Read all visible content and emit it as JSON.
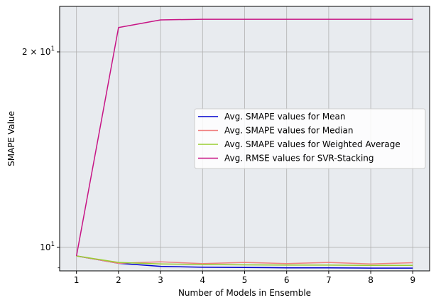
{
  "chart_data": {
    "type": "line",
    "xlabel": "Number of Models in Ensemble",
    "ylabel": "SMAPE Value",
    "y_scale": "log",
    "grid": true,
    "legend_position": "center-right",
    "background_color": "#e8ebef",
    "grid_color": "#b0b0b0",
    "x": [
      1,
      2,
      3,
      4,
      5,
      6,
      7,
      8,
      9
    ],
    "xlim": [
      0.6,
      9.4
    ],
    "ylim": [
      9.2,
      23.5
    ],
    "x_ticks": [
      {
        "value": 1,
        "label": "1"
      },
      {
        "value": 2,
        "label": "2"
      },
      {
        "value": 3,
        "label": "3"
      },
      {
        "value": 4,
        "label": "4"
      },
      {
        "value": 5,
        "label": "5"
      },
      {
        "value": 6,
        "label": "6"
      },
      {
        "value": 7,
        "label": "7"
      },
      {
        "value": 8,
        "label": "8"
      },
      {
        "value": 9,
        "label": "9"
      }
    ],
    "y_ticks": [
      {
        "value": 10,
        "base": "10",
        "exp": "1",
        "mult": ""
      },
      {
        "value": 20,
        "base": "10",
        "exp": "1",
        "mult": "2 × "
      }
    ],
    "y_minor_ticks": [
      9.3
    ],
    "series": [
      {
        "name": "Avg. SMAPE values for Mean",
        "color": "#0000cd",
        "values": [
          9.7,
          9.45,
          9.35,
          9.32,
          9.31,
          9.3,
          9.3,
          9.29,
          9.29
        ]
      },
      {
        "name": "Avg. SMAPE values for Median",
        "color": "#f08080",
        "values": [
          9.7,
          9.45,
          9.5,
          9.44,
          9.48,
          9.44,
          9.48,
          9.43,
          9.47
        ]
      },
      {
        "name": "Avg. SMAPE values for Weighted Average",
        "color": "#9acd32",
        "values": [
          9.7,
          9.48,
          9.43,
          9.41,
          9.4,
          9.39,
          9.39,
          9.38,
          9.38
        ]
      },
      {
        "name": "Avg. RMSE values for SVR-Stacking",
        "color": "#c71585",
        "values": [
          9.7,
          21.8,
          22.4,
          22.45,
          22.45,
          22.45,
          22.45,
          22.45,
          22.45
        ]
      }
    ]
  }
}
